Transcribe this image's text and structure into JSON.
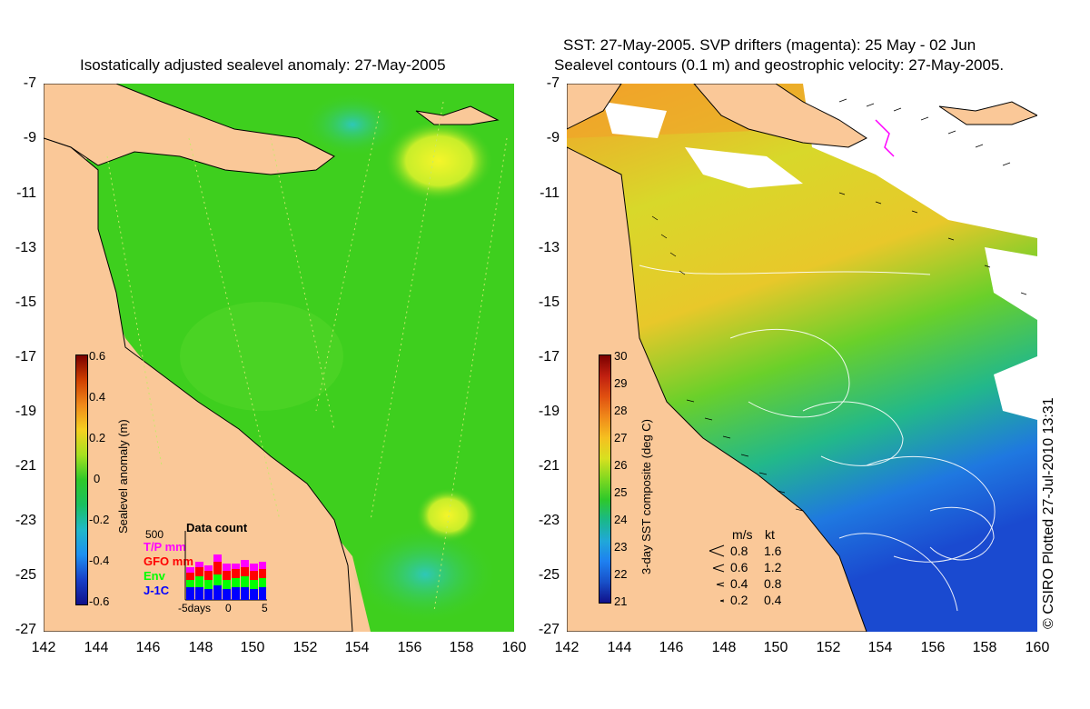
{
  "left": {
    "title": "Isostatically adjusted sealevel anomaly: 27-May-2005",
    "colorbar": {
      "label": "Sealevel anomaly (m)",
      "ticks": [
        "0.6",
        "0.4",
        "0.2",
        "0",
        "-0.2",
        "-0.4",
        "-0.6"
      ]
    },
    "data_count": {
      "title": "Data count",
      "max_label": "500",
      "legend": [
        {
          "label": "T/P mm",
          "color": "#ff00ff"
        },
        {
          "label": "GFO mm",
          "color": "#ff0000"
        },
        {
          "label": "Env",
          "color": "#00ff00"
        },
        {
          "label": "J-1C",
          "color": "#0000ff"
        }
      ],
      "x_ticks": [
        "-5days",
        "0",
        "5"
      ]
    }
  },
  "right": {
    "title_line1": "SST: 27-May-2005. SVP drifters (magenta): 25 May - 02 Jun",
    "title_line2": "Sealevel contours (0.1 m) and geostrophic velocity: 27-May-2005.",
    "colorbar": {
      "label": "3-day SST composite (deg C)",
      "ticks": [
        "30",
        "29",
        "28",
        "27",
        "26",
        "25",
        "24",
        "23",
        "22",
        "21"
      ]
    },
    "velocity_key": {
      "header_ms": "m/s",
      "header_kt": "kt",
      "rows": [
        {
          "ms": "0.8",
          "kt": "1.6"
        },
        {
          "ms": "0.6",
          "kt": "1.2"
        },
        {
          "ms": "0.4",
          "kt": "0.8"
        },
        {
          "ms": "0.2",
          "kt": "0.4"
        }
      ]
    }
  },
  "axes": {
    "y_ticks": [
      "-7",
      "-9",
      "-11",
      "-13",
      "-15",
      "-17",
      "-19",
      "-21",
      "-23",
      "-25",
      "-27"
    ],
    "x_ticks": [
      "142",
      "144",
      "146",
      "148",
      "150",
      "152",
      "154",
      "156",
      "158",
      "160"
    ]
  },
  "credit": "© CSIRO Plotted 27-Jul-2010 13:31",
  "colors": {
    "land": "#fac898",
    "sla_ocean": "#3ecf1e",
    "sst_warm": "#f2a12a",
    "sst_mid": "#2dbd2d",
    "sst_cool": "#1f5fd8"
  }
}
